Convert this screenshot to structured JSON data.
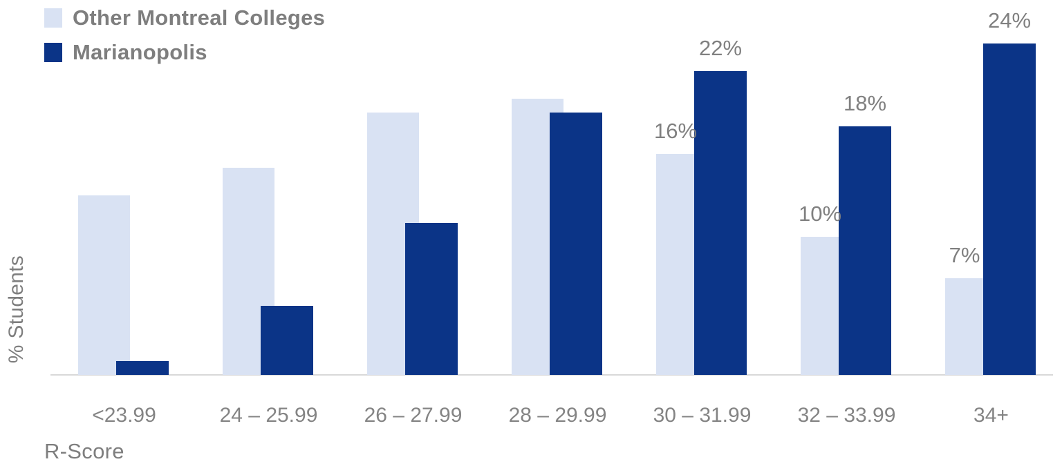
{
  "chart_data": {
    "type": "bar",
    "title": "",
    "categories": [
      "<23.99",
      "24 – 25.99",
      "26 – 27.99",
      "28 – 29.99",
      "30 – 31.99",
      "32 – 33.99",
      "34+"
    ],
    "xlabel": "R-Score",
    "ylabel": "% Students",
    "ylim": [
      0,
      25
    ],
    "grid": false,
    "legend_position": "top-left",
    "bar_style": "overlapping-pairs",
    "series": [
      {
        "name": "Other Montreal Colleges",
        "color": "#D9E2F3",
        "values": [
          13,
          15,
          19,
          20,
          16,
          10,
          7
        ],
        "data_labels": [
          "",
          "",
          "",
          "",
          "16%",
          "10%",
          "7%"
        ]
      },
      {
        "name": "Marianopolis",
        "color": "#0B3487",
        "values": [
          1,
          5,
          11,
          19,
          22,
          18,
          24
        ],
        "data_labels": [
          "",
          "",
          "",
          "",
          "22%",
          "18%",
          "24%"
        ]
      }
    ]
  },
  "colors": {
    "label_text": "#808080",
    "axis_text": "#7E7E7E",
    "axis_line": "#D8D8D8",
    "background": "#FFFFFF"
  }
}
